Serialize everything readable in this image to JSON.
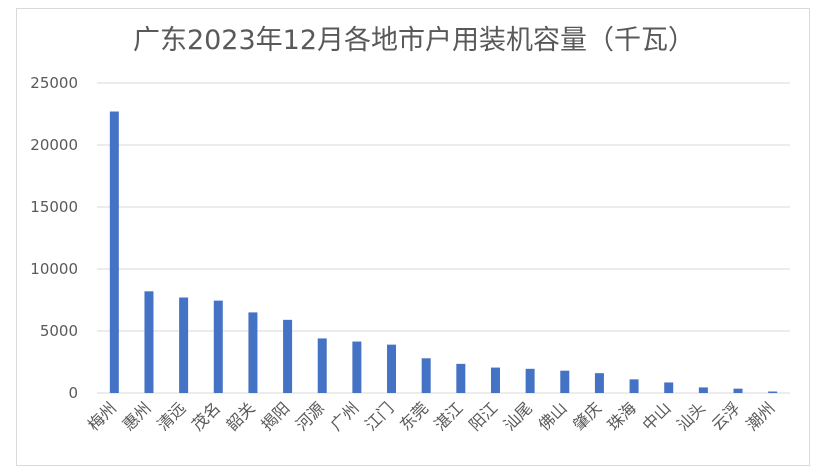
{
  "chart_data": {
    "type": "bar",
    "title": "广东2023年12月各地市户用装机容量（千瓦）",
    "xlabel": "",
    "ylabel": "",
    "ylim": [
      0,
      25000
    ],
    "yticks": [
      "0",
      "5000",
      "10000",
      "15000",
      "20000",
      "25000"
    ],
    "grid": true,
    "legend": "none",
    "categories": [
      "梅州",
      "惠州",
      "清远",
      "茂名",
      "韶关",
      "揭阳",
      "河源",
      "广州",
      "江门",
      "东莞",
      "湛江",
      "阳江",
      "汕尾",
      "佛山",
      "肇庆",
      "珠海",
      "中山",
      "汕头",
      "云浮",
      "潮州"
    ],
    "values": [
      22700,
      8200,
      7700,
      7450,
      6500,
      5900,
      4400,
      4150,
      3900,
      2800,
      2350,
      2050,
      1950,
      1800,
      1600,
      1100,
      850,
      450,
      350,
      120
    ],
    "colors": {
      "bar": "#4472c4",
      "grid": "#d9d9d9",
      "text": "#595959"
    }
  }
}
